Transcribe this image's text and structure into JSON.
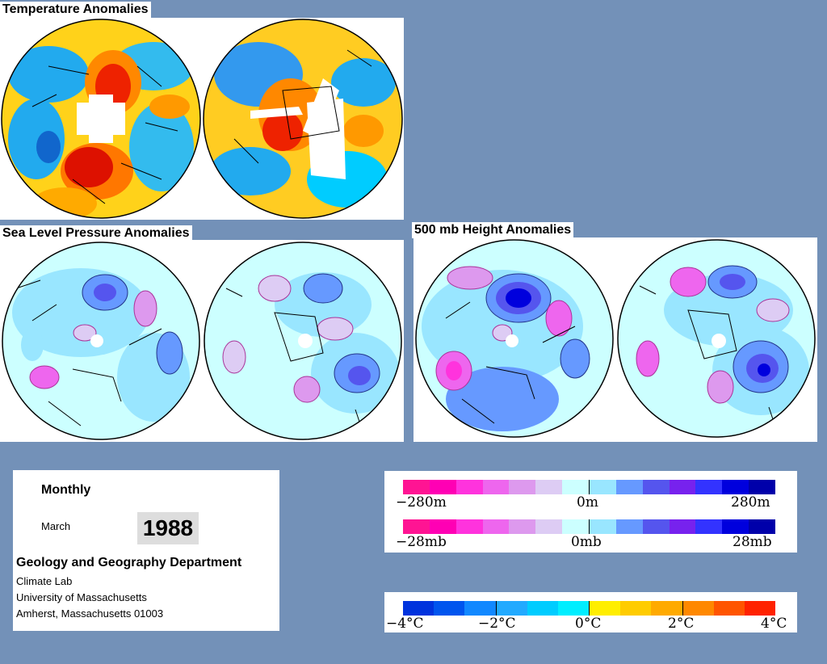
{
  "panels": {
    "temperature": {
      "title": "Temperature Anomalies"
    },
    "slp": {
      "title": "Sea Level Pressure Anomalies"
    },
    "height500": {
      "title": "500 mb Height Anomalies"
    }
  },
  "info": {
    "period": "Monthly",
    "month": "March",
    "year": "1988",
    "department": "Geology and Geography Department",
    "lab": "Climate Lab",
    "university": "University of Massachusetts",
    "address": "Amherst, Massachusetts 01003"
  },
  "legends": {
    "height": {
      "min": "−280m",
      "mid": "0m",
      "max": "280m"
    },
    "pressure": {
      "min": "−28mb",
      "mid": "0mb",
      "max": "28mb"
    },
    "temperature": {
      "t1": "−4°C",
      "t2": "−2°C",
      "t3": "0°C",
      "t4": "2°C",
      "t5": "4°C"
    }
  },
  "colors": {
    "background": "#7391b8",
    "anomaly_scale": [
      "#ff1493",
      "#ff00b4",
      "#ff33dd",
      "#ee66ee",
      "#dd99ee",
      "#ddccf4",
      "#ccffff",
      "#99e6ff",
      "#6699ff",
      "#5555ee",
      "#7722ee",
      "#3333ff",
      "#0000dd",
      "#0000aa"
    ],
    "temperature_scale": [
      "#0033dd",
      "#0055ee",
      "#1188ff",
      "#22aaff",
      "#00ccff",
      "#00eeff",
      "#ffee00",
      "#ffcc00",
      "#ffaa00",
      "#ff8800",
      "#ff5500",
      "#ff2200"
    ]
  }
}
